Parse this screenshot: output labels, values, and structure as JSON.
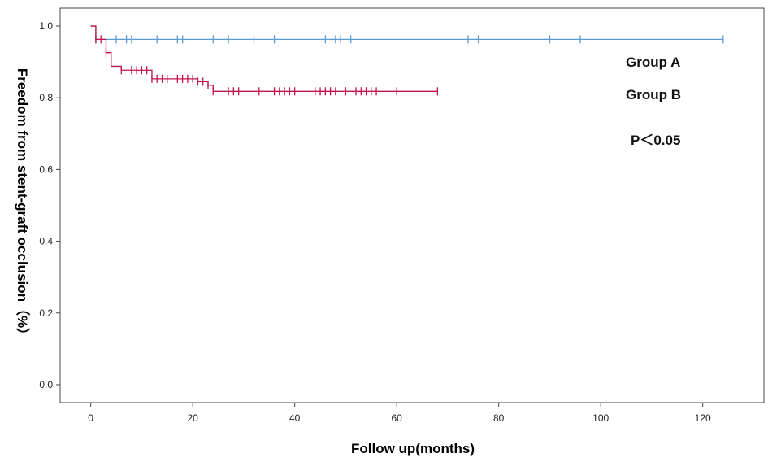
{
  "chart_data": {
    "type": "line",
    "subtype": "kaplan-meier-step",
    "xlabel": "Follow up(months)",
    "ylabel": "Freedom from stent-graft occlusion（%）",
    "xlim": [
      -6,
      132
    ],
    "ylim": [
      -0.05,
      1.05
    ],
    "x_ticks": [
      0,
      20,
      40,
      60,
      80,
      100,
      120
    ],
    "y_ticks": [
      0.0,
      0.2,
      0.4,
      0.6,
      0.8,
      1.0
    ],
    "y_tick_labels": [
      "0.0",
      "0.2",
      "0.4",
      "0.6",
      "0.8",
      "1.0"
    ],
    "grid": false,
    "annotations": [
      "Group A",
      "Group B",
      "P＜0.05"
    ],
    "series": [
      {
        "name": "Group A",
        "color": "#5b9bd5",
        "steps": [
          [
            0,
            1.0
          ],
          [
            1,
            0.963
          ],
          [
            124,
            0.963
          ]
        ],
        "censored": [
          1,
          5,
          7,
          8,
          13,
          17,
          18,
          24,
          27,
          32,
          36,
          46,
          48,
          49,
          51,
          74,
          76,
          90,
          96,
          124
        ]
      },
      {
        "name": "Group B",
        "color": "#c0134a",
        "steps": [
          [
            0,
            1.0
          ],
          [
            1,
            0.963
          ],
          [
            3,
            0.926
          ],
          [
            4,
            0.888
          ],
          [
            6,
            0.877
          ],
          [
            12,
            0.853
          ],
          [
            21,
            0.845
          ],
          [
            23,
            0.835
          ],
          [
            24,
            0.818
          ],
          [
            68,
            0.818
          ]
        ],
        "censored": [
          1,
          2,
          3,
          6,
          8,
          9,
          10,
          11,
          12,
          13,
          14,
          15,
          17,
          18,
          19,
          20,
          21,
          22,
          23,
          24,
          27,
          28,
          29,
          33,
          36,
          37,
          38,
          39,
          40,
          44,
          45,
          46,
          47,
          48,
          50,
          52,
          53,
          54,
          55,
          56,
          60,
          68
        ]
      }
    ]
  }
}
